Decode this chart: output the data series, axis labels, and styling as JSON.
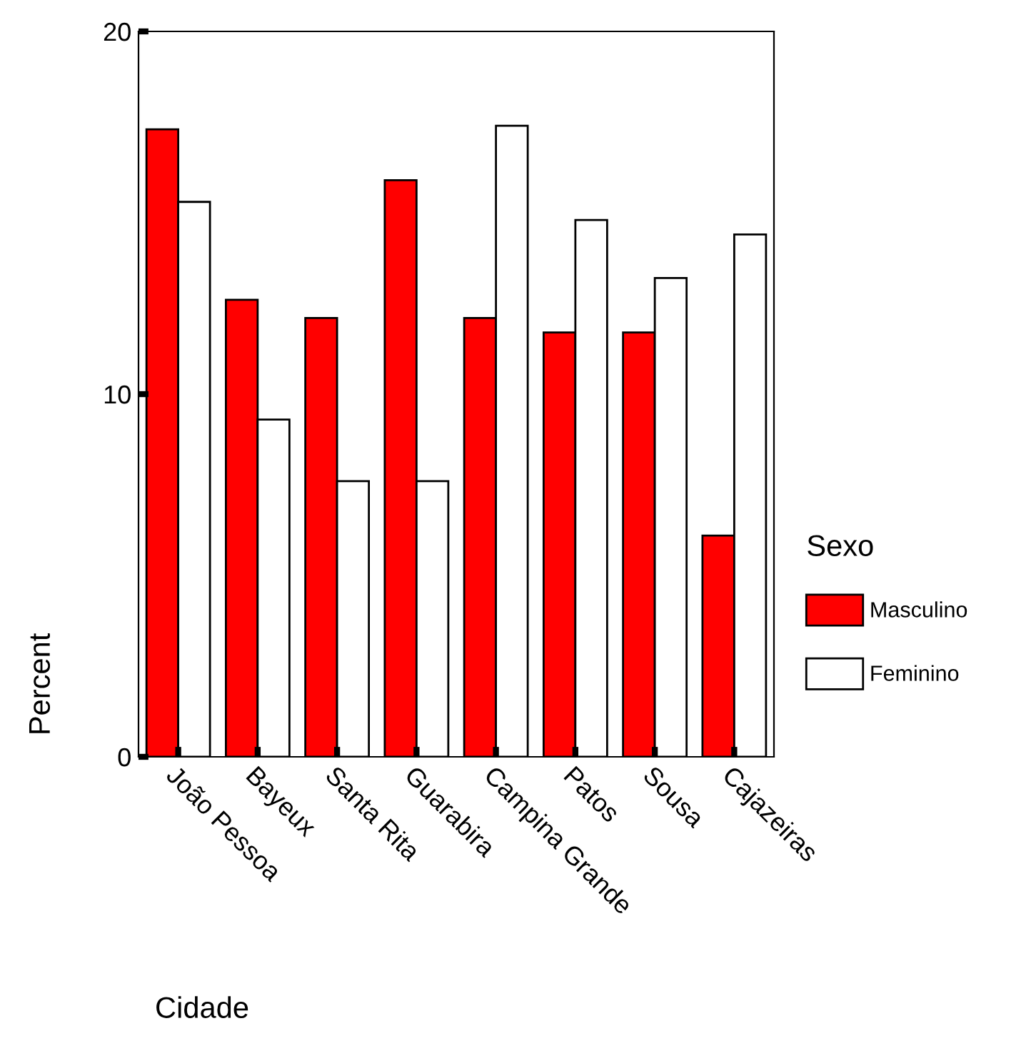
{
  "chart_data": {
    "type": "bar",
    "xlabel": "Cidade",
    "ylabel": "Percent",
    "legend_title": "Sexo",
    "categories": [
      "João Pessoa",
      "Bayeux",
      "Santa Rita",
      "Guarabira",
      "Campina Grande",
      "Patos",
      "Sousa",
      "Cajazeiras"
    ],
    "series": [
      {
        "name": "Masculino",
        "color": "#ff0000",
        "values": [
          17.3,
          12.6,
          12.1,
          15.9,
          12.1,
          11.7,
          11.7,
          6.1
        ]
      },
      {
        "name": "Feminino",
        "color": "#ffffff",
        "values": [
          15.3,
          9.3,
          7.6,
          7.6,
          17.4,
          14.8,
          13.2,
          14.4
        ]
      }
    ],
    "ylim": [
      0,
      20
    ],
    "yticks": [
      0,
      10,
      20
    ],
    "grid": false,
    "legend": "right"
  }
}
